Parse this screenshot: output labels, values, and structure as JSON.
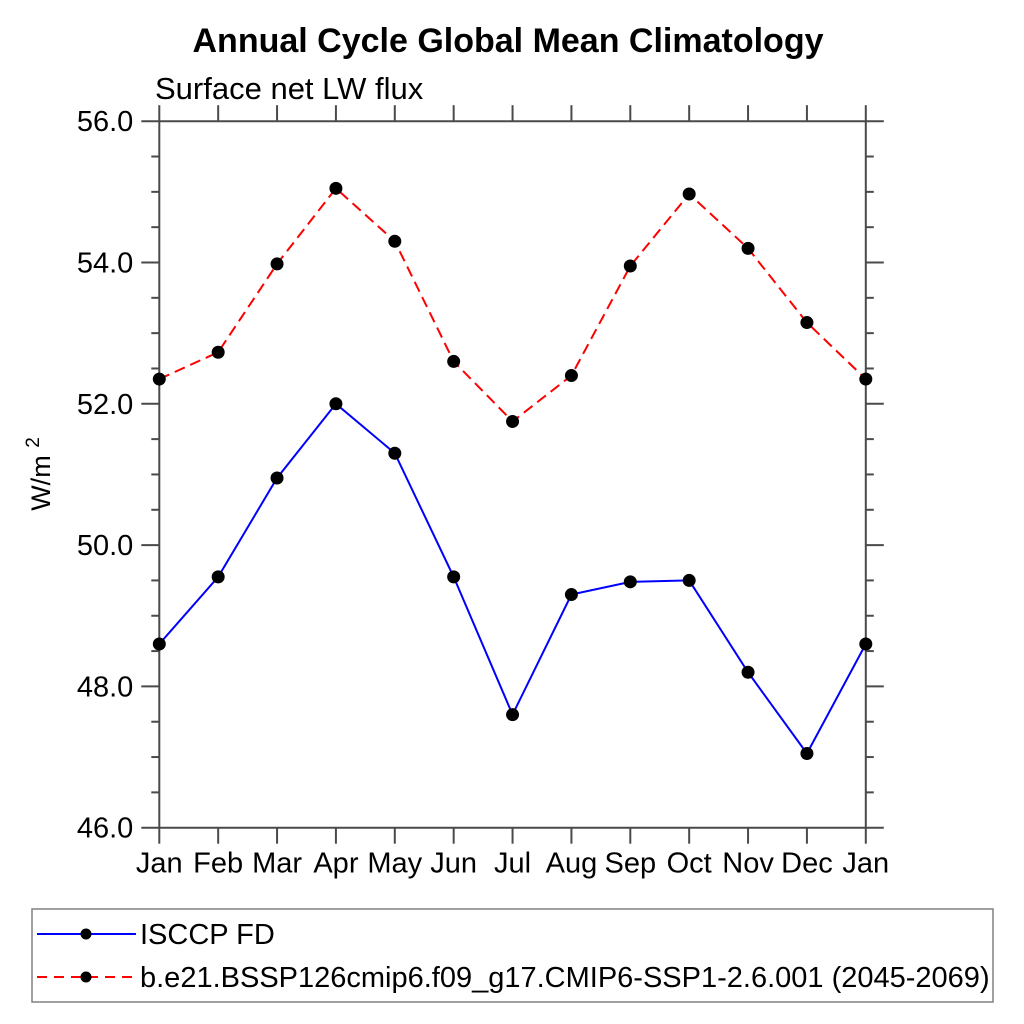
{
  "title": "Annual Cycle Global Mean Climatology",
  "subtitle": "Surface net LW flux",
  "ylabel": {
    "base": "W/m",
    "exp": "2"
  },
  "chart_data": {
    "type": "line",
    "categories": [
      "Jan",
      "Feb",
      "Mar",
      "Apr",
      "May",
      "Jun",
      "Jul",
      "Aug",
      "Sep",
      "Oct",
      "Nov",
      "Dec",
      "Jan"
    ],
    "series": [
      {
        "name": "ISCCP FD",
        "color": "#0000ff",
        "line_style": "solid",
        "marker": "filled-circle",
        "marker_color": "#000000",
        "values": [
          48.6,
          49.55,
          50.95,
          52.0,
          51.3,
          49.55,
          47.6,
          49.3,
          49.48,
          49.5,
          48.2,
          47.05,
          48.6
        ]
      },
      {
        "name": "b.e21.BSSP126cmip6.f09_g17.CMIP6-SSP1-2.6.001 (2045-2069)",
        "color": "#ff0000",
        "line_style": "dashed",
        "marker": "filled-circle",
        "marker_color": "#000000",
        "values": [
          52.35,
          52.73,
          53.98,
          55.05,
          54.3,
          52.6,
          51.75,
          52.4,
          53.95,
          54.97,
          54.2,
          53.15,
          52.35
        ]
      }
    ],
    "ylim": [
      46.0,
      56.0
    ],
    "yticks": [
      46.0,
      48.0,
      50.0,
      52.0,
      54.0,
      56.0
    ],
    "ytick_labels": [
      "46.0",
      "48.0",
      "50.0",
      "52.0",
      "54.0",
      "56.0"
    ],
    "y_minor_interval": 0.5,
    "xlabel": "",
    "ylabel": "W/m^2",
    "grid": false,
    "legend_position": "bottom",
    "axis_color": "#4a4a4a",
    "legend_border_color": "#808080",
    "text_color": "#000000"
  }
}
